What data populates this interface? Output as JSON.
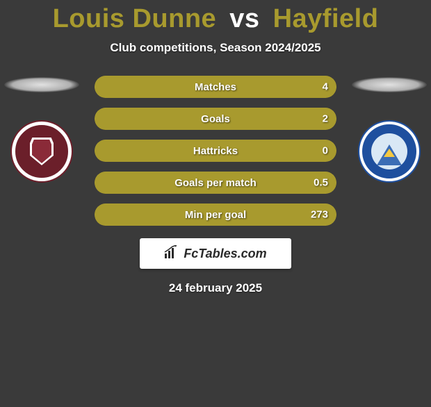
{
  "title": {
    "player1": "Louis Dunne",
    "vs": "vs",
    "player2": "Hayfield",
    "color": "#a89a2e"
  },
  "subtitle": "Club competitions, Season 2024/2025",
  "clubs": {
    "left": {
      "name": "Chelmsford City Football Club",
      "badge_bg": "#6b1f2a"
    },
    "right": {
      "name": "Torquay United Football Club",
      "badge_bg": "#1e4f9e"
    }
  },
  "stats": {
    "bar_fill_color": "#a89a2e",
    "bar_border_color": "#a89a2e",
    "bar_bg_color": "rgba(168,154,46,0.25)",
    "rows": [
      {
        "label": "Matches",
        "left": "",
        "right": "4",
        "fill_pct": 100
      },
      {
        "label": "Goals",
        "left": "",
        "right": "2",
        "fill_pct": 100
      },
      {
        "label": "Hattricks",
        "left": "",
        "right": "0",
        "fill_pct": 100
      },
      {
        "label": "Goals per match",
        "left": "",
        "right": "0.5",
        "fill_pct": 100
      },
      {
        "label": "Min per goal",
        "left": "",
        "right": "273",
        "fill_pct": 100
      }
    ]
  },
  "footer_logo_text": "FcTables.com",
  "date": "24 february 2025",
  "background_color": "#3a3a3a"
}
